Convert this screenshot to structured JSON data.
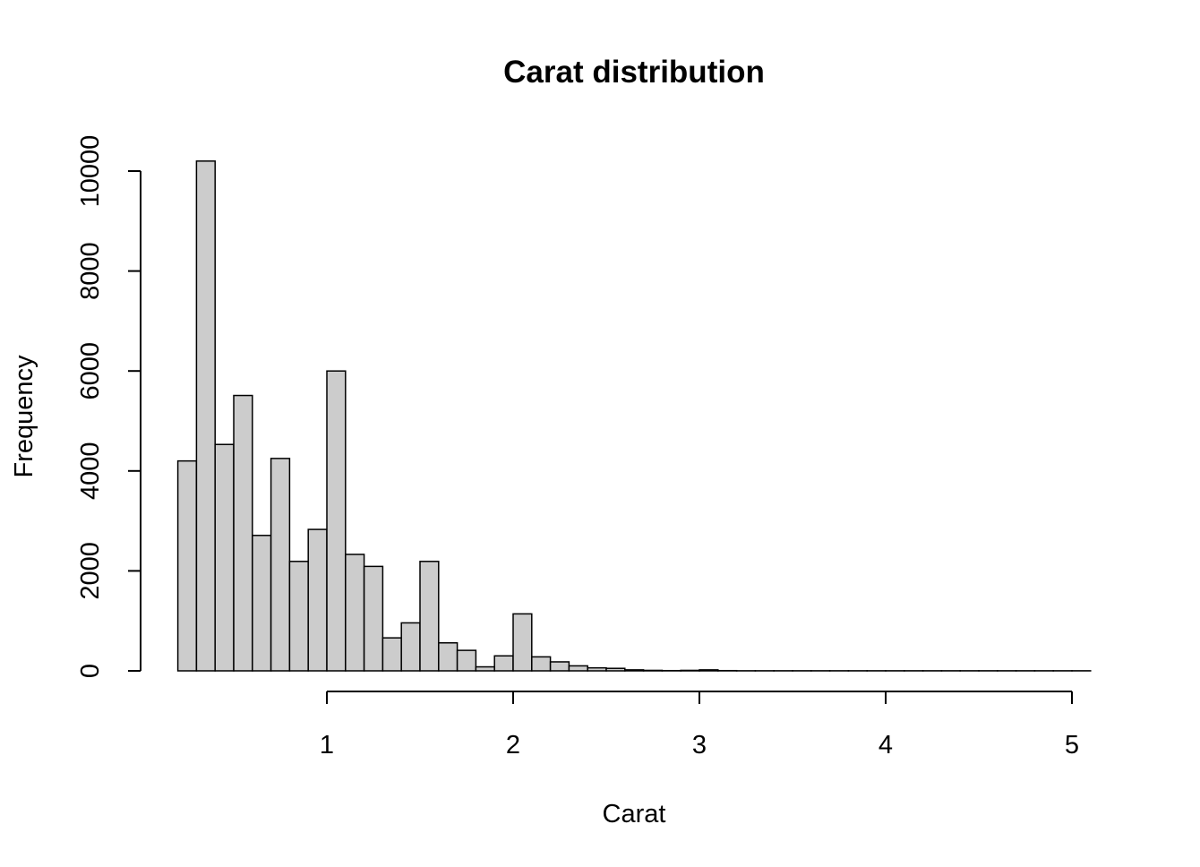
{
  "chart_data": {
    "type": "bar",
    "title": "Carat distribution",
    "xlabel": "Carat",
    "ylabel": "Frequency",
    "bin_width": 0.1,
    "bins_start": 0.2,
    "xlim": [
      0.2,
      5.1
    ],
    "ylim": [
      0,
      10000
    ],
    "x_ticks": [
      "1",
      "2",
      "3",
      "4",
      "5"
    ],
    "y_ticks": [
      "0",
      "2000",
      "4000",
      "6000",
      "8000",
      "10000"
    ],
    "values": [
      4200,
      10200,
      4530,
      5510,
      2710,
      4250,
      2190,
      2830,
      6000,
      2330,
      2090,
      660,
      960,
      2190,
      560,
      410,
      80,
      300,
      1140,
      280,
      180,
      100,
      60,
      50,
      20,
      10,
      5,
      10,
      20,
      5,
      2,
      2,
      2,
      2,
      2,
      2,
      2,
      2,
      2,
      2,
      2,
      2,
      2,
      2,
      2,
      2,
      2,
      2,
      2
    ],
    "bar_fill": "#cccccc",
    "bar_stroke": "#000000",
    "grid": false,
    "legend": "none"
  }
}
